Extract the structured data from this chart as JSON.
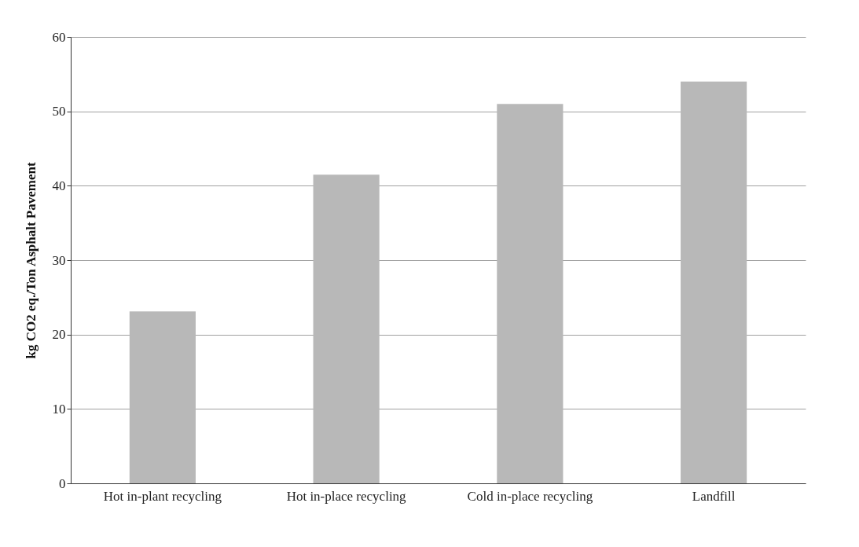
{
  "chart_data": {
    "type": "bar",
    "ylabel": "kg CO2 eq./Ton Asphalt Pavement",
    "categories": [
      "Hot in-plant recycling",
      "Hot in-place recycling",
      "Cold in-place recycling",
      "Landfill"
    ],
    "values": [
      23.1,
      41.5,
      51,
      54
    ],
    "color": "#b8b8b8",
    "ylim": [
      0,
      60
    ],
    "yticks": [
      0,
      10,
      20,
      30,
      40,
      50,
      60
    ],
    "grid": "y"
  }
}
